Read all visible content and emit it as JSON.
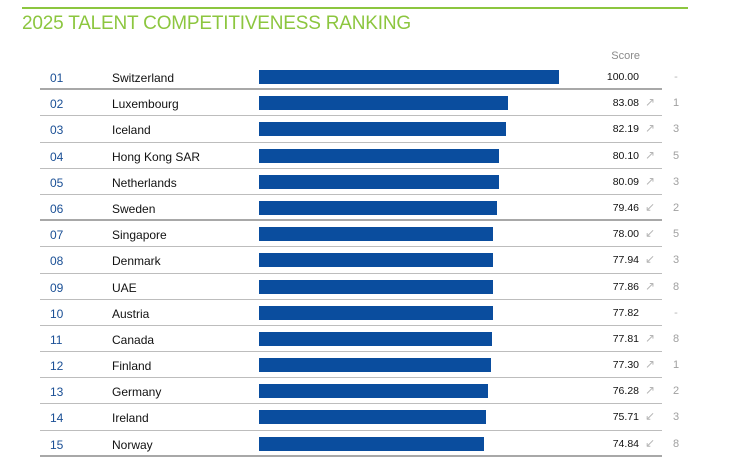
{
  "title": "2025 TALENT COMPETITIVENESS RANKING",
  "score_header": "Score",
  "colors": {
    "accent": "#8cc63f",
    "bar": "#0a4d9e",
    "rank": "#1a4f95"
  },
  "chart_data": {
    "type": "bar",
    "orientation": "horizontal",
    "title": "2025 TALENT COMPETITIVENESS RANKING",
    "value_label": "Score",
    "xlim": [
      0,
      100
    ],
    "rows": [
      {
        "rank": "01",
        "country": "Switzerland",
        "score": 100.0,
        "score_text": "100.00",
        "direction": "none",
        "change": "-"
      },
      {
        "rank": "02",
        "country": "Luxembourg",
        "score": 83.08,
        "score_text": "83.08",
        "direction": "up",
        "change": "1"
      },
      {
        "rank": "03",
        "country": "Iceland",
        "score": 82.19,
        "score_text": "82.19",
        "direction": "up",
        "change": "3"
      },
      {
        "rank": "04",
        "country": "Hong Kong SAR",
        "score": 80.1,
        "score_text": "80.10",
        "direction": "up",
        "change": "5"
      },
      {
        "rank": "05",
        "country": "Netherlands",
        "score": 80.09,
        "score_text": "80.09",
        "direction": "up",
        "change": "3"
      },
      {
        "rank": "06",
        "country": "Sweden",
        "score": 79.46,
        "score_text": "79.46",
        "direction": "down",
        "change": "2"
      },
      {
        "rank": "07",
        "country": "Singapore",
        "score": 78.0,
        "score_text": "78.00",
        "direction": "down",
        "change": "5"
      },
      {
        "rank": "08",
        "country": "Denmark",
        "score": 77.94,
        "score_text": "77.94",
        "direction": "down",
        "change": "3"
      },
      {
        "rank": "09",
        "country": "UAE",
        "score": 77.86,
        "score_text": "77.86",
        "direction": "up",
        "change": "8"
      },
      {
        "rank": "10",
        "country": "Austria",
        "score": 77.82,
        "score_text": "77.82",
        "direction": "none",
        "change": "-"
      },
      {
        "rank": "11",
        "country": "Canada",
        "score": 77.81,
        "score_text": "77.81",
        "direction": "up",
        "change": "8"
      },
      {
        "rank": "12",
        "country": "Finland",
        "score": 77.3,
        "score_text": "77.30",
        "direction": "up",
        "change": "1"
      },
      {
        "rank": "13",
        "country": "Germany",
        "score": 76.28,
        "score_text": "76.28",
        "direction": "up",
        "change": "2"
      },
      {
        "rank": "14",
        "country": "Ireland",
        "score": 75.71,
        "score_text": "75.71",
        "direction": "down",
        "change": "3"
      },
      {
        "rank": "15",
        "country": "Norway",
        "score": 74.84,
        "score_text": "74.84",
        "direction": "down",
        "change": "8"
      }
    ]
  }
}
